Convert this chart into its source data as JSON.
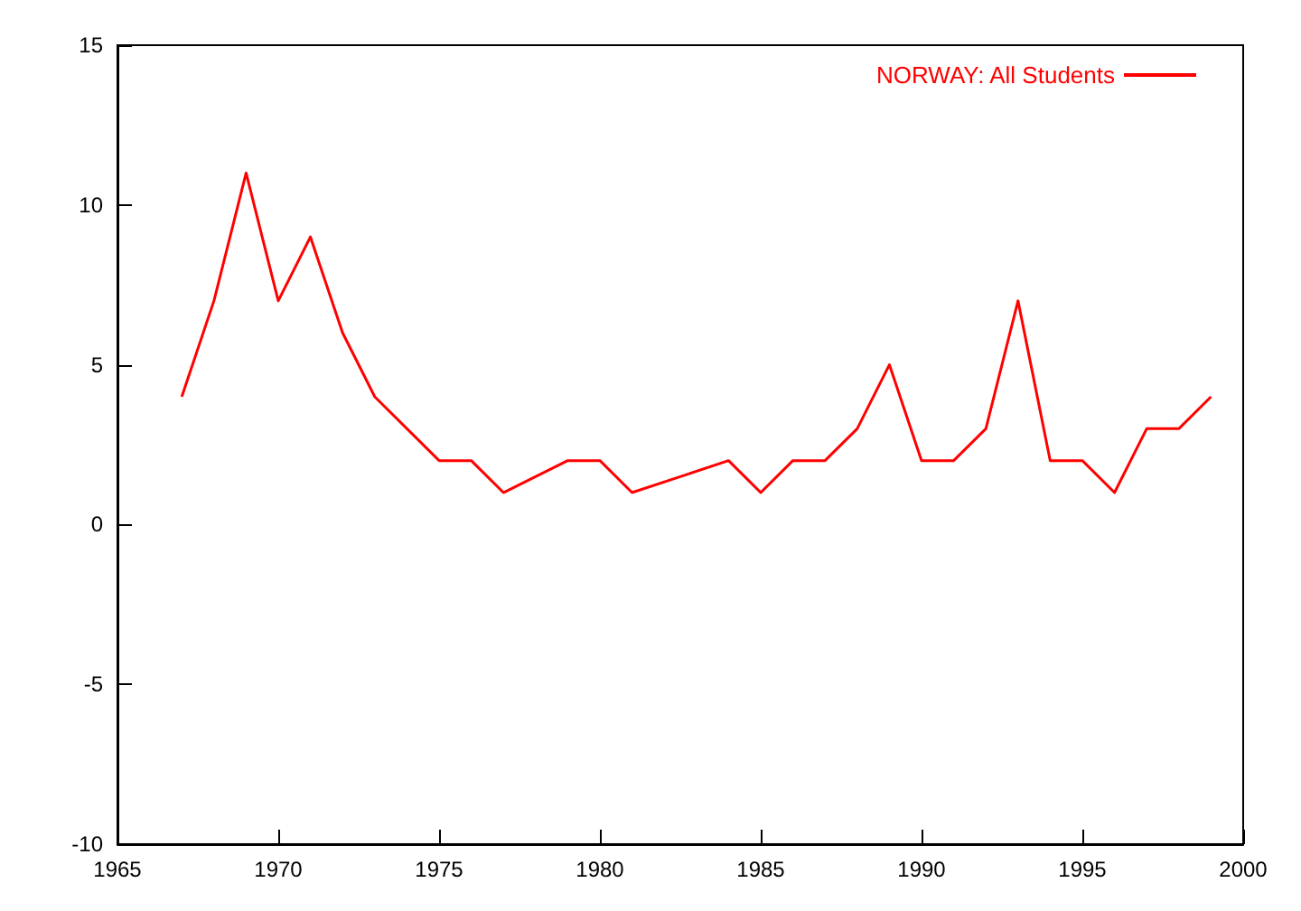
{
  "chart_data": {
    "type": "line",
    "x": [
      1967,
      1968,
      1969,
      1970,
      1971,
      1972,
      1973,
      1975,
      1976,
      1977,
      1979,
      1980,
      1981,
      1984,
      1985,
      1986,
      1987,
      1988,
      1989,
      1990,
      1991,
      1992,
      1993,
      1994,
      1995,
      1996,
      1997,
      1998,
      1999
    ],
    "series": [
      {
        "name": "NORWAY: All Students",
        "color": "#ff0000",
        "values": [
          4,
          7,
          11,
          7,
          9,
          6,
          4,
          2,
          2,
          1,
          2,
          2,
          1,
          2,
          1,
          2,
          2,
          3,
          5,
          2,
          2,
          3,
          7,
          2,
          2,
          1,
          3,
          3,
          4
        ]
      }
    ],
    "xlim": [
      1965,
      2000
    ],
    "xticks": [
      1965,
      1970,
      1975,
      1980,
      1985,
      1990,
      1995,
      2000
    ],
    "ylim": [
      -10,
      15
    ],
    "yticks": [
      -10,
      -5,
      0,
      5,
      10,
      15
    ],
    "grid": false,
    "legend": "top right",
    "marker": "none",
    "line_style": "solid"
  }
}
